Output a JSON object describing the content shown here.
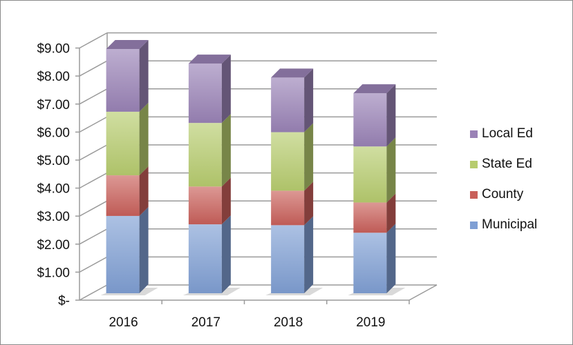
{
  "chart_data": {
    "type": "bar",
    "stacked": true,
    "three_d": true,
    "title": "",
    "xlabel": "",
    "ylabel": "",
    "categories": [
      "2016",
      "2017",
      "2018",
      "2019"
    ],
    "series": [
      {
        "name": "Municipal",
        "color": "#7f9fd4",
        "values": [
          2.76,
          2.46,
          2.43,
          2.16
        ]
      },
      {
        "name": "County",
        "color": "#c9605a",
        "values": [
          1.45,
          1.35,
          1.23,
          1.08
        ]
      },
      {
        "name": "State Ed",
        "color": "#b7cc6e",
        "values": [
          2.27,
          2.27,
          2.09,
          2.0
        ]
      },
      {
        "name": "Local Ed",
        "color": "#9a82b6",
        "values": [
          2.24,
          2.12,
          1.95,
          1.9
        ]
      }
    ],
    "totals": [
      8.72,
      8.2,
      7.7,
      7.14
    ],
    "ylim": [
      0,
      9
    ],
    "yticks": [
      "$-",
      "$1.00",
      "$2.00",
      "$3.00",
      "$4.00",
      "$5.00",
      "$6.00",
      "$7.00",
      "$8.00",
      "$9.00"
    ],
    "grid": true,
    "legend_position": "right",
    "legend_order": [
      "Local Ed",
      "State Ed",
      "County",
      "Municipal"
    ]
  },
  "legend": {
    "items": [
      {
        "label": "Local Ed",
        "color": "#9a82b6"
      },
      {
        "label": "State Ed",
        "color": "#b7cc6e"
      },
      {
        "label": "County",
        "color": "#c9605a"
      },
      {
        "label": "Municipal",
        "color": "#7f9fd4"
      }
    ]
  }
}
